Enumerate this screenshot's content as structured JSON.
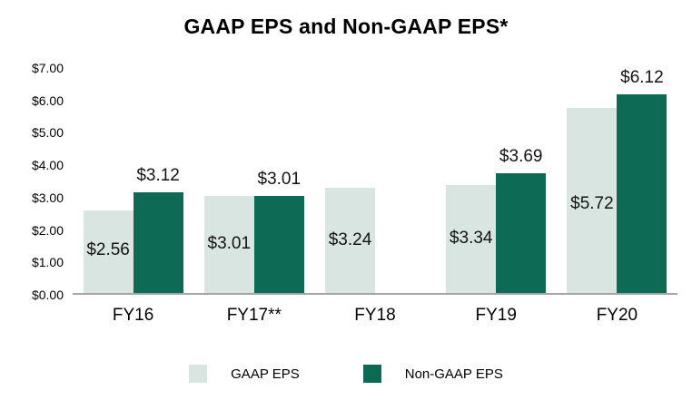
{
  "title": "GAAP EPS and Non-GAAP EPS*",
  "chart_data": {
    "type": "bar",
    "title": "GAAP EPS and Non-GAAP EPS*",
    "categories": [
      "FY16",
      "FY17**",
      "FY18",
      "FY19",
      "FY20"
    ],
    "series": [
      {
        "name": "GAAP EPS",
        "color": "#d9e5e0",
        "values": [
          2.56,
          3.01,
          3.24,
          3.34,
          5.72
        ],
        "labels": [
          "$2.56",
          "$3.01",
          "$3.24",
          "$3.34",
          "$5.72"
        ],
        "label_position": "inside"
      },
      {
        "name": "Non-GAAP EPS",
        "color": "#0c6a55",
        "values": [
          3.12,
          3.01,
          null,
          3.69,
          6.12
        ],
        "labels": [
          "$3.12",
          "$3.01",
          null,
          "$3.69",
          "$6.12"
        ],
        "label_position": "above"
      }
    ],
    "xlabel": "",
    "ylabel": "",
    "ylim": [
      0,
      7
    ],
    "ytick_step": 1,
    "ytick_labels": [
      "$0.00",
      "$1.00",
      "$2.00",
      "$3.00",
      "$4.00",
      "$5.00",
      "$6.00",
      "$7.00"
    ],
    "grid": false,
    "legend_position": "bottom"
  },
  "legend": {
    "items": [
      {
        "label": "GAAP EPS",
        "color": "#d9e5e0"
      },
      {
        "label": "Non-GAAP EPS",
        "color": "#0c6a55"
      }
    ]
  }
}
